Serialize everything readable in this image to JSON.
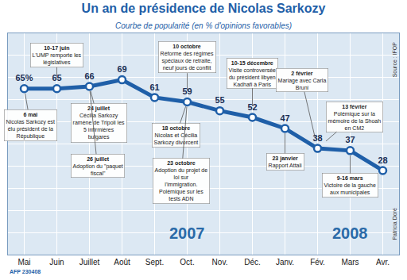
{
  "chart_data": {
    "type": "line",
    "title": "Un an de présidence de Nicolas Sarkozy",
    "subtitle": "Courbe de popularité (en % d'opinions favorables)",
    "categories": [
      "Mai",
      "Juin",
      "Juillet",
      "Août",
      "Sept.",
      "Oct.",
      "Nov.",
      "Déc.",
      "Janv.",
      "Fév.",
      "Mars",
      "Avr."
    ],
    "values": [
      65,
      65,
      66,
      69,
      61,
      59,
      55,
      52,
      47,
      38,
      37,
      28
    ],
    "value_labels": [
      "65%",
      "65",
      "66",
      "69",
      "61",
      "59",
      "55",
      "52",
      "47",
      "38",
      "37",
      "28"
    ],
    "data_labels": true,
    "color": "#1f5fa8",
    "marker": "circle",
    "line_style": "solid",
    "ylim": [
      -10,
      90
    ],
    "yticks": [
      -10,
      0,
      10,
      20,
      30,
      40,
      50,
      60,
      70,
      80,
      90
    ],
    "grid": true,
    "tick_labels": "x",
    "annotations": [
      {
        "x": "Mai",
        "date": "6 mai",
        "text": "Nicolas Sarkozy est élu président de la République"
      },
      {
        "x": "Juin",
        "date": "10-17 juin",
        "text": "L'UMP remporte les législatives"
      },
      {
        "x": "Juillet",
        "date": "24 juillet",
        "text": "Cécilia Sarkozy ramène de Tripoli les 5 infirmières bulgares"
      },
      {
        "x": "Juillet",
        "date": "26 juillet",
        "text": "Adoption du \"paquet fiscal\""
      },
      {
        "x": "Oct.",
        "date": "10 octobre",
        "text": "Réforme des régimes spéciaux de retraite, neuf jours de conflit"
      },
      {
        "x": "Oct.",
        "date": "18 octobre",
        "text": "Nicolas et Cécilia Sarkozy divorcent"
      },
      {
        "x": "Oct.",
        "date": "23 octobre",
        "text": "Adoption du projet de loi sur l'immigration. Polémique sur les tests ADN"
      },
      {
        "x": "Déc.",
        "date": "10-15 décembre",
        "text": "Visite controversée du président libyen Kadhafi à Paris"
      },
      {
        "x": "Janv.",
        "date": "23 janvier",
        "text": "Rapport Attali"
      },
      {
        "x": "Fév.",
        "date": "2 février",
        "text": "Mariage avec Carla Bruni"
      },
      {
        "x": "Fév.",
        "date": "13 février",
        "text": "Polémique sur la mémoire de la Shoah en CM2"
      },
      {
        "x": "Mars",
        "date": "9-16 mars",
        "text": "Victoire de la gauche aux municipales"
      }
    ],
    "years": [
      {
        "x": "Oct.",
        "label": "2007"
      },
      {
        "x": "Mars",
        "label": "2008"
      }
    ],
    "source": "Source : IFOP",
    "credit": "Patricia Doré",
    "agency": "AFP 230408"
  }
}
